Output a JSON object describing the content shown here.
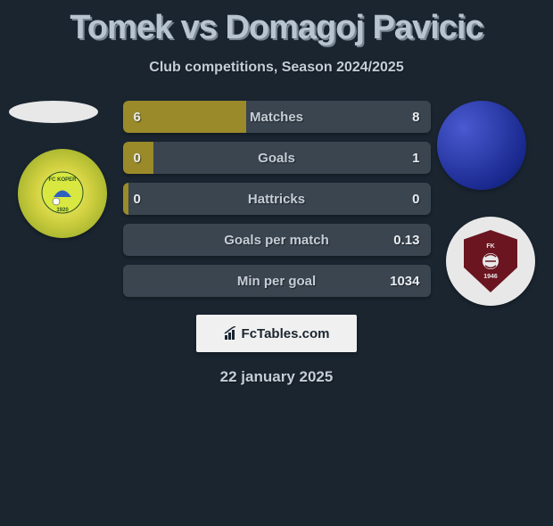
{
  "header": {
    "title": "Tomek vs Domagoj Pavicic",
    "subtitle": "Club competitions, Season 2024/2025"
  },
  "players": {
    "left": {
      "name": "Tomek",
      "badge_label": "FC KOPER",
      "badge_year": "1920",
      "badge_colors": {
        "outer": "#88a020",
        "mid": "#d0d040",
        "inner": "#f8f87a"
      }
    },
    "right": {
      "name": "Domagoj Pavicic",
      "avatar_color": "#1a2a90",
      "badge_label": "FK",
      "badge_year": "1946",
      "badge_bg": "#6a1520"
    }
  },
  "stats": [
    {
      "label": "Matches",
      "left_value": "6",
      "right_value": "8",
      "left_fill_pct": 40,
      "right_fill_pct": 0,
      "left_color": "#9a8a2a",
      "right_color": "#3a4550"
    },
    {
      "label": "Goals",
      "left_value": "0",
      "right_value": "1",
      "left_fill_pct": 10,
      "right_fill_pct": 0,
      "left_color": "#9a8a2a",
      "right_color": "#3a4550"
    },
    {
      "label": "Hattricks",
      "left_value": "0",
      "right_value": "0",
      "left_fill_pct": 2,
      "right_fill_pct": 0,
      "left_color": "#9a8a2a",
      "right_color": "#3a4550"
    },
    {
      "label": "Goals per match",
      "left_value": "",
      "right_value": "0.13",
      "left_fill_pct": 0,
      "right_fill_pct": 0,
      "left_color": "#9a8a2a",
      "right_color": "#3a4550"
    },
    {
      "label": "Min per goal",
      "left_value": "",
      "right_value": "1034",
      "left_fill_pct": 0,
      "right_fill_pct": 0,
      "left_color": "#9a8a2a",
      "right_color": "#3a4550"
    }
  ],
  "branding": {
    "text": "FcTables.com"
  },
  "date": "22 january 2025",
  "colors": {
    "background": "#1a2530",
    "text_light": "#c5cdd6",
    "text_title": "#b8c5d0",
    "bar_bg": "#3a4550",
    "bar_fill": "#9a8a2a"
  },
  "typography": {
    "title_fontsize": 38,
    "subtitle_fontsize": 16,
    "stat_fontsize": 15,
    "date_fontsize": 17
  }
}
